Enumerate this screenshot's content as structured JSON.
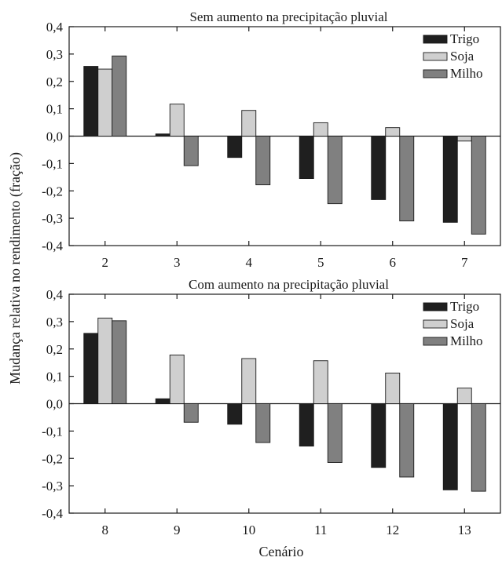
{
  "ylabel": "Mudança relativa no rendimento (fração)",
  "xlabel": "Cenário",
  "chart_data": [
    {
      "type": "bar",
      "title": "Sem aumento na precipitação pluvial",
      "categories": [
        "2",
        "3",
        "4",
        "5",
        "6",
        "7"
      ],
      "series": [
        {
          "name": "Trigo",
          "color": "#1f1f1f",
          "values": [
            0.255,
            0.008,
            -0.078,
            -0.155,
            -0.232,
            -0.315
          ]
        },
        {
          "name": "Soja",
          "color": "#cfcfcf",
          "values": [
            0.245,
            0.117,
            0.094,
            0.049,
            0.031,
            -0.018
          ]
        },
        {
          "name": "Milho",
          "color": "#808080",
          "values": [
            0.293,
            -0.108,
            -0.178,
            -0.247,
            -0.31,
            -0.358
          ]
        }
      ],
      "ylim": [
        -0.4,
        0.4
      ],
      "yticks": [
        "0,4",
        "0,3",
        "0,2",
        "0,1",
        "0,0",
        "-0,1",
        "-0,2",
        "-0,3",
        "-0,4"
      ],
      "ytick_values": [
        0.4,
        0.3,
        0.2,
        0.1,
        0.0,
        -0.1,
        -0.2,
        -0.3,
        -0.4
      ],
      "legend": "top-right",
      "grid": false
    },
    {
      "type": "bar",
      "title": "Com aumento na precipitação pluvial",
      "categories": [
        "8",
        "9",
        "10",
        "11",
        "12",
        "13"
      ],
      "series": [
        {
          "name": "Trigo",
          "color": "#1f1f1f",
          "values": [
            0.257,
            0.018,
            -0.075,
            -0.155,
            -0.233,
            -0.315
          ]
        },
        {
          "name": "Soja",
          "color": "#cfcfcf",
          "values": [
            0.313,
            0.178,
            0.165,
            0.157,
            0.112,
            0.057
          ]
        },
        {
          "name": "Milho",
          "color": "#808080",
          "values": [
            0.303,
            -0.068,
            -0.142,
            -0.215,
            -0.268,
            -0.32
          ]
        }
      ],
      "ylim": [
        -0.4,
        0.4
      ],
      "yticks": [
        "0,4",
        "0,3",
        "0,2",
        "0,1",
        "0,0",
        "-0,1",
        "-0,2",
        "-0,3",
        "-0,4"
      ],
      "ytick_values": [
        0.4,
        0.3,
        0.2,
        0.1,
        0.0,
        -0.1,
        -0.2,
        -0.3,
        -0.4
      ],
      "legend": "top-right",
      "grid": false
    }
  ]
}
